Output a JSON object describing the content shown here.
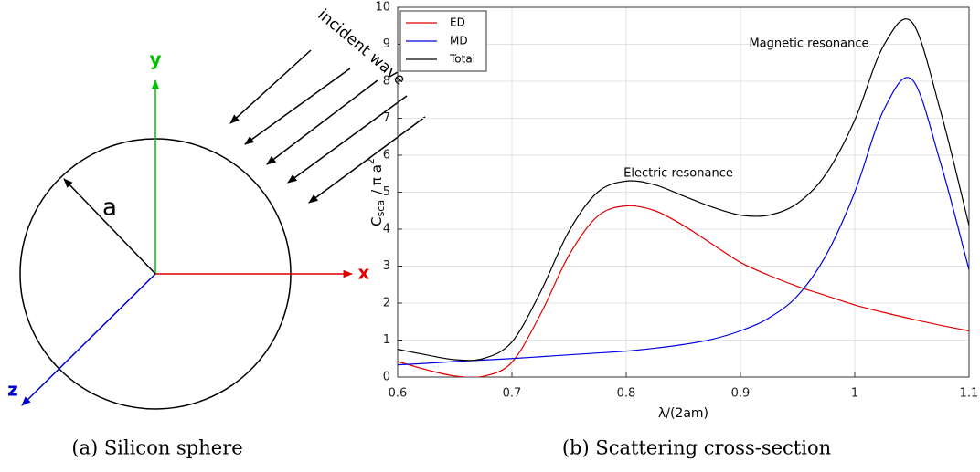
{
  "figure_a": {
    "labels": {
      "y": "y",
      "x": "x",
      "z": "z",
      "radius": "a",
      "wave": "incident wave"
    },
    "caption": "(a) Silicon sphere"
  },
  "chart_data": {
    "type": "line",
    "xlabel": "λ/(2am)",
    "ylabel": [
      "C",
      "sca",
      "/ π a",
      "2"
    ],
    "annotations": [
      "Magnetic resonance",
      "Electric resonance"
    ],
    "caption": "(b) Scattering cross-section",
    "x": [
      0.6,
      0.625,
      0.65,
      0.675,
      0.7,
      0.725,
      0.75,
      0.775,
      0.8,
      0.825,
      0.85,
      0.875,
      0.9,
      0.925,
      0.95,
      0.975,
      1.0,
      1.025,
      1.05,
      1.075,
      1.1
    ],
    "series": [
      {
        "name": "ED",
        "color": "#e00000",
        "values": [
          0.42,
          0.2,
          0.03,
          0.02,
          0.4,
          1.7,
          3.3,
          4.35,
          4.63,
          4.5,
          4.1,
          3.6,
          3.1,
          2.75,
          2.45,
          2.2,
          1.95,
          1.75,
          1.57,
          1.4,
          1.25
        ]
      },
      {
        "name": "MD",
        "color": "#0000e0",
        "values": [
          0.33,
          0.37,
          0.42,
          0.46,
          0.5,
          0.55,
          0.6,
          0.65,
          0.7,
          0.78,
          0.88,
          1.02,
          1.25,
          1.6,
          2.2,
          3.3,
          5.0,
          7.2,
          8.05,
          5.8,
          2.9
        ]
      },
      {
        "name": "Total",
        "color": "#000000",
        "values": [
          0.75,
          0.6,
          0.47,
          0.5,
          0.95,
          2.3,
          3.95,
          5.0,
          5.3,
          5.2,
          4.9,
          4.6,
          4.38,
          4.38,
          4.7,
          5.5,
          6.95,
          8.95,
          9.6,
          7.2,
          4.1
        ]
      }
    ],
    "xlim": [
      0.6,
      1.1
    ],
    "ylim": [
      0,
      10
    ],
    "xticks": [
      0.6,
      0.7,
      0.8,
      0.9,
      1,
      1.1
    ],
    "yticks": [
      0,
      1,
      2,
      3,
      4,
      5,
      6,
      7,
      8,
      9,
      10
    ],
    "grid": true,
    "legend": "upper left"
  }
}
